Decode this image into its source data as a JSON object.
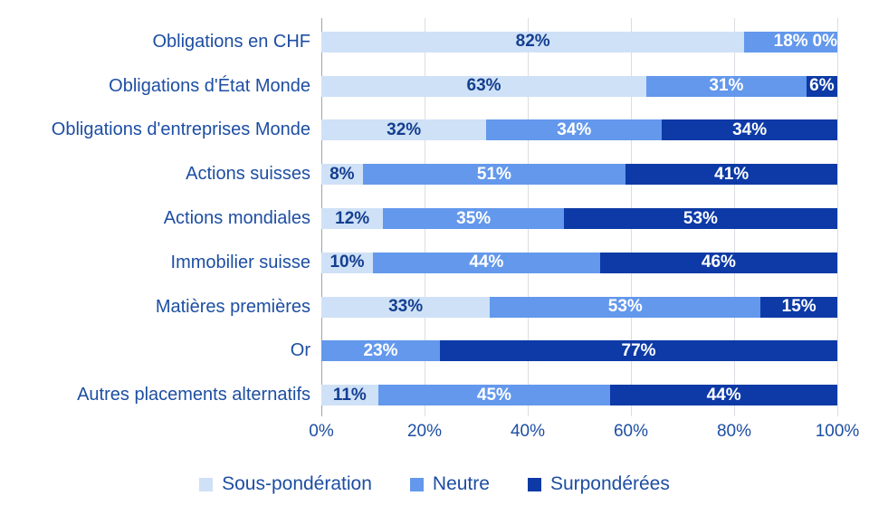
{
  "chart_data": {
    "type": "bar",
    "orientation": "horizontal",
    "stacked": true,
    "title": "",
    "xlabel": "",
    "ylabel": "",
    "xlim": [
      0,
      100
    ],
    "grid": true,
    "legend_position": "bottom",
    "value_label_format": "{v}%",
    "categories": [
      "Obligations en CHF",
      "Obligations d'État Monde",
      "Obligations d'entreprises Monde",
      "Actions suisses",
      "Actions mondiales",
      "Immobilier suisse",
      "Matières premières",
      "Or",
      "Autres placements alternatifs"
    ],
    "series": [
      {
        "name": "Sous-pondération",
        "color": "#cfe1f7",
        "values": [
          82,
          63,
          32,
          8,
          12,
          10,
          33,
          0,
          11
        ]
      },
      {
        "name": "Neutre",
        "color": "#6398ec",
        "values": [
          18,
          31,
          34,
          51,
          35,
          44,
          53,
          23,
          45
        ]
      },
      {
        "name": "Surpondérées",
        "color": "#0d3aa6",
        "values": [
          0,
          6,
          34,
          41,
          53,
          46,
          15,
          77,
          44
        ]
      }
    ],
    "x_ticks": [
      "0%",
      "20%",
      "40%",
      "60%",
      "80%",
      "100%"
    ]
  },
  "style_colors": {
    "category_text": "#1d4ea2",
    "tick_text": "#1d4ea2",
    "legend_text": "#1d4ea2",
    "value_text_on_light": "#143f90",
    "value_text_on_dark": "#ffffff",
    "axis_line": "#9fa4aa",
    "grid_line": "#dadde2",
    "background": "#ffffff"
  }
}
